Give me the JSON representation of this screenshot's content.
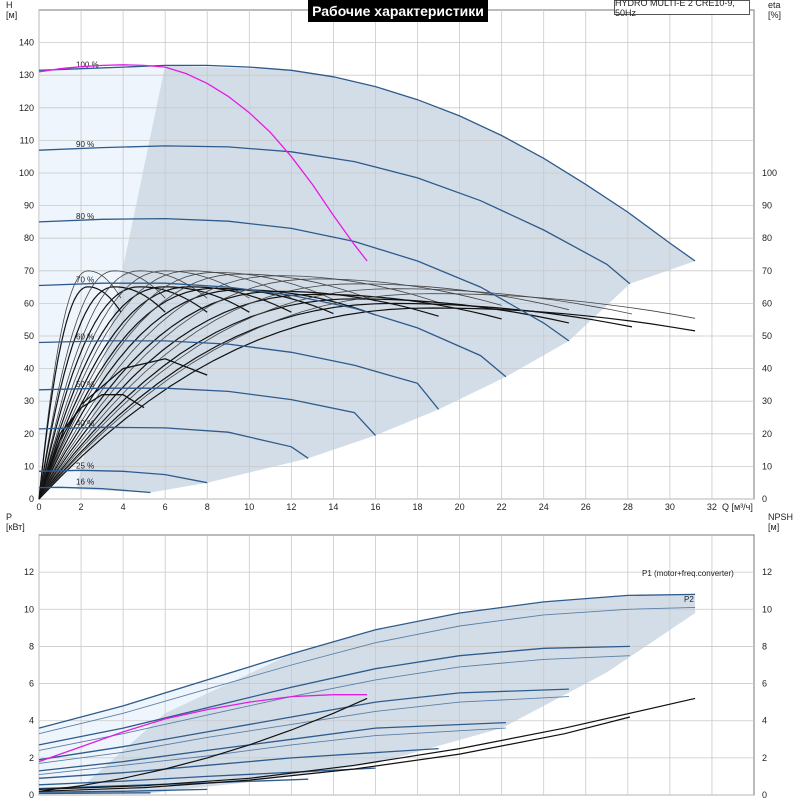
{
  "chart_data": [
    {
      "type": "line",
      "title": "Рабочие характеристики",
      "model": "HYDRO MULTI-E 2 CRE10-9, 50Hz",
      "ylabel": "H",
      "yunit": "[м]",
      "y2label": "eta",
      "y2unit": "[%]",
      "xlabel": "Q",
      "xunit": "[м³/ч]",
      "xlim": [
        0,
        34
      ],
      "ylim": [
        0,
        150
      ],
      "y2lim": [
        0,
        150
      ],
      "xticks": [
        0,
        2,
        4,
        6,
        8,
        10,
        12,
        14,
        16,
        18,
        20,
        22,
        24,
        26,
        28,
        30,
        32
      ],
      "yticks": [
        0,
        10,
        20,
        30,
        40,
        50,
        60,
        70,
        80,
        90,
        100,
        110,
        120,
        130,
        140
      ],
      "y2ticks": [
        0,
        10,
        20,
        30,
        40,
        50,
        60,
        70,
        80,
        90,
        100
      ],
      "grid": true,
      "speed_curves": [
        {
          "name": "100 %",
          "x": [
            0,
            2,
            4,
            6,
            8,
            10,
            12,
            14,
            16,
            18,
            20,
            22,
            24,
            26,
            28,
            30,
            31.2
          ],
          "y": [
            131.5,
            132,
            132.5,
            133,
            133,
            132.5,
            131.5,
            129.5,
            126.5,
            122.5,
            117.5,
            111.5,
            104.5,
            96.5,
            88,
            78.5,
            73
          ]
        },
        {
          "name": "90 %",
          "x": [
            0,
            3,
            6,
            9,
            12,
            15,
            18,
            21,
            24,
            27,
            28.1
          ],
          "y": [
            107,
            107.8,
            108.3,
            108,
            106.5,
            103.5,
            98.5,
            91.5,
            82.5,
            72,
            66
          ]
        },
        {
          "name": "80 %",
          "x": [
            0,
            3,
            6,
            9,
            12,
            15,
            18,
            21,
            24,
            25.2
          ],
          "y": [
            85,
            85.8,
            86,
            85.2,
            83,
            79,
            73,
            65,
            54,
            48.5
          ]
        },
        {
          "name": "70 %",
          "x": [
            0,
            3,
            6,
            9,
            12,
            15,
            18,
            21,
            22.2
          ],
          "y": [
            65.5,
            66.2,
            66.2,
            65,
            62.5,
            58.5,
            52.5,
            44,
            37.5
          ]
        },
        {
          "name": "60 %",
          "x": [
            0,
            3,
            6,
            9,
            12,
            15,
            18,
            19
          ],
          "y": [
            48,
            48.5,
            48.5,
            47.5,
            45,
            41,
            35.5,
            27.5
          ]
        },
        {
          "name": "50 %",
          "x": [
            0,
            3,
            6,
            9,
            12,
            15,
            16
          ],
          "y": [
            33.5,
            34,
            34,
            33,
            30.5,
            26.5,
            19.5
          ]
        },
        {
          "name": "40 %",
          "x": [
            0,
            3,
            6,
            9,
            12,
            12.8
          ],
          "y": [
            21.5,
            22,
            21.8,
            20.5,
            16,
            12.5
          ]
        },
        {
          "name": "25 %",
          "x": [
            0,
            2,
            4,
            6,
            8
          ],
          "y": [
            8.5,
            8.8,
            8.5,
            7.5,
            5
          ]
        },
        {
          "name": "16 %",
          "x": [
            0,
            1,
            3,
            5.3
          ],
          "y": [
            3.5,
            3.6,
            3.2,
            2
          ]
        }
      ],
      "max_curve_x": [
        0,
        1,
        2,
        3,
        4,
        5,
        6,
        7,
        8,
        9,
        10,
        11,
        12,
        13,
        14,
        15,
        15.6
      ],
      "max_curve_y": [
        131,
        132,
        132.6,
        133,
        133.2,
        133,
        132.5,
        130.5,
        127.5,
        123.5,
        118.5,
        112.5,
        105,
        96.5,
        87,
        78,
        73
      ],
      "eta_peaks_x": [
        3.9,
        6,
        8,
        10,
        12,
        14,
        16,
        19,
        22,
        25.2,
        28.2,
        31.2
      ],
      "eta_max": [
        70,
        70,
        70,
        70,
        70,
        69.5,
        69,
        68.5,
        67.5,
        66,
        64.5,
        63
      ],
      "eta_small": [
        {
          "x": [
            0,
            1,
            2,
            3,
            4,
            5
          ],
          "y": [
            0,
            20,
            28,
            32,
            32,
            28
          ]
        },
        {
          "x": [
            0,
            1,
            2,
            4,
            6,
            8
          ],
          "y": [
            0,
            18,
            29,
            40,
            43,
            38
          ]
        }
      ],
      "labels_pct": [
        "100 %",
        "90 %",
        "80 %",
        "70 %",
        "60 %",
        "50 %",
        "40 %",
        "25 %",
        "16 %"
      ]
    },
    {
      "type": "line",
      "ylabel": "P",
      "yunit": "[кВт]",
      "y2label": "NPSH",
      "y2unit": "[м]",
      "xlim": [
        0,
        34
      ],
      "ylim": [
        0,
        14
      ],
      "yticks": [
        0,
        2,
        4,
        6,
        8,
        10,
        12
      ],
      "y2ticks": [
        0,
        2,
        4,
        6,
        8,
        10,
        12
      ],
      "grid": true,
      "p1_label": "P1 (motor+freq.converter)",
      "p2_label": "P2",
      "p1_curves": [
        {
          "x": [
            0,
            4,
            8,
            12,
            16,
            20,
            24,
            28,
            31.2
          ],
          "y": [
            3.6,
            4.8,
            6.2,
            7.6,
            8.9,
            9.8,
            10.4,
            10.75,
            10.8
          ]
        },
        {
          "x": [
            0,
            4,
            8,
            12,
            16,
            20,
            24,
            28.1
          ],
          "y": [
            2.7,
            3.6,
            4.7,
            5.8,
            6.8,
            7.5,
            7.9,
            8
          ]
        },
        {
          "x": [
            0,
            4,
            8,
            12,
            16,
            20,
            25.2
          ],
          "y": [
            1.9,
            2.6,
            3.4,
            4.2,
            5,
            5.5,
            5.7
          ]
        },
        {
          "x": [
            0,
            4,
            8,
            12,
            16,
            22.2
          ],
          "y": [
            1.3,
            1.8,
            2.4,
            3,
            3.6,
            3.9
          ]
        },
        {
          "x": [
            0,
            4,
            8,
            12,
            19
          ],
          "y": [
            0.9,
            1.2,
            1.6,
            2,
            2.5
          ]
        },
        {
          "x": [
            0,
            4,
            8,
            16
          ],
          "y": [
            0.55,
            0.75,
            1,
            1.45
          ]
        },
        {
          "x": [
            0,
            4,
            8,
            12.8
          ],
          "y": [
            0.35,
            0.5,
            0.65,
            0.85
          ]
        },
        {
          "x": [
            0,
            4,
            8
          ],
          "y": [
            0.15,
            0.2,
            0.3
          ]
        },
        {
          "x": [
            0,
            5.3
          ],
          "y": [
            0.08,
            0.12
          ]
        }
      ],
      "p2_curves": [
        {
          "x": [
            0,
            4,
            8,
            12,
            16,
            20,
            24,
            28,
            31.2
          ],
          "y": [
            3.3,
            4.4,
            5.7,
            7,
            8.2,
            9.1,
            9.7,
            10,
            10.1
          ]
        },
        {
          "x": [
            0,
            4,
            8,
            12,
            16,
            20,
            24,
            28.1
          ],
          "y": [
            2.4,
            3.3,
            4.3,
            5.3,
            6.2,
            6.9,
            7.3,
            7.5
          ]
        },
        {
          "x": [
            0,
            4,
            8,
            12,
            16,
            20,
            25.2
          ],
          "y": [
            1.7,
            2.3,
            3.1,
            3.8,
            4.5,
            5,
            5.3
          ]
        },
        {
          "x": [
            0,
            4,
            8,
            12,
            16,
            22.2
          ],
          "y": [
            1.1,
            1.6,
            2.1,
            2.7,
            3.2,
            3.6
          ]
        }
      ],
      "p_max_curve": {
        "x": [
          0,
          2,
          4,
          6,
          8,
          10,
          12,
          14,
          15.6
        ],
        "y": [
          1.8,
          2.6,
          3.4,
          4.1,
          4.6,
          5,
          5.3,
          5.4,
          5.4
        ]
      },
      "npsh_curves": [
        {
          "x": [
            0,
            5,
            10,
            15,
            20,
            25,
            31.2
          ],
          "y": [
            0.3,
            0.5,
            0.9,
            1.6,
            2.5,
            3.6,
            5.2
          ]
        },
        {
          "x": [
            0,
            5,
            10,
            15,
            20,
            25,
            28.1
          ],
          "y": [
            0.2,
            0.4,
            0.8,
            1.4,
            2.2,
            3.3,
            4.2
          ]
        },
        {
          "x": [
            0,
            2,
            4,
            6,
            8,
            10,
            12,
            14,
            15.6
          ],
          "y": [
            0.2,
            0.5,
            0.9,
            1.4,
            2,
            2.7,
            3.5,
            4.4,
            5.2
          ]
        }
      ]
    }
  ]
}
